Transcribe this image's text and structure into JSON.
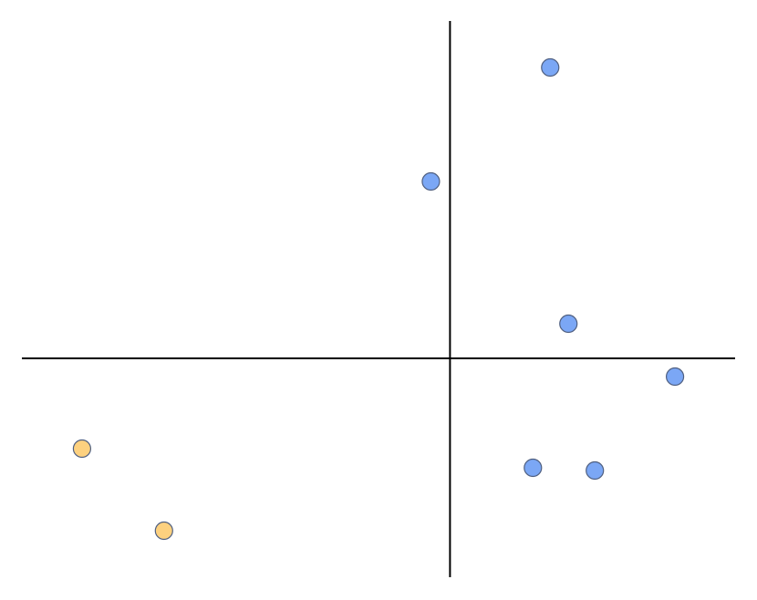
{
  "chart_data": {
    "type": "scatter",
    "xlim": [
      -47,
      31.3
    ],
    "ylim": [
      -24,
      37
    ],
    "series": [
      {
        "color": "#7ba7f5",
        "x": [
          11,
          -2.1,
          13,
          24.7,
          9.1,
          15.9
        ],
        "values": [
          31.9,
          19.4,
          3.8,
          -2,
          -12,
          -12.3
        ]
      },
      {
        "color": "#fdd17f",
        "x": [
          -40.4,
          -31.4
        ],
        "values": [
          -9.9,
          -18.9
        ]
      }
    ]
  }
}
